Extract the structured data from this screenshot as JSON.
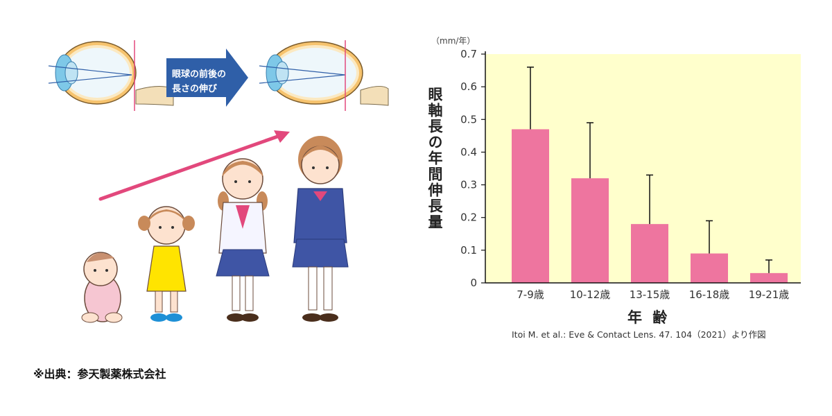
{
  "illustration": {
    "arrow_label_line1": "眼球の前後の",
    "arrow_label_line2": "長さの伸び",
    "colors": {
      "arrow_blue": "#2f5fa8",
      "growth_arrow": "#e2487c"
    }
  },
  "source_note": "※出典：参天製薬株式会社",
  "chart_data": {
    "type": "bar",
    "unit_label": "（mm/年）",
    "ylabel": "眼軸長の年間伸長量",
    "xlabel": "年 齢",
    "citation": "Itoi M. et al.: Eve & Contact Lens. 47. 104（2021）より作図",
    "categories": [
      "7-9歳",
      "10-12歳",
      "13-15歳",
      "16-18歳",
      "19-21歳"
    ],
    "values": [
      0.47,
      0.32,
      0.18,
      0.09,
      0.03
    ],
    "error_upper": [
      0.66,
      0.49,
      0.33,
      0.19,
      0.07
    ],
    "ylim": [
      0,
      0.7
    ],
    "yticks": [
      "0",
      "0.1",
      "0.2",
      "0.3",
      "0.4",
      "0.5",
      "0.6",
      "0.7"
    ],
    "grid": false,
    "colors": {
      "bar": "#ee759f",
      "background": "#ffffcc",
      "error_bar": "#111111"
    }
  }
}
